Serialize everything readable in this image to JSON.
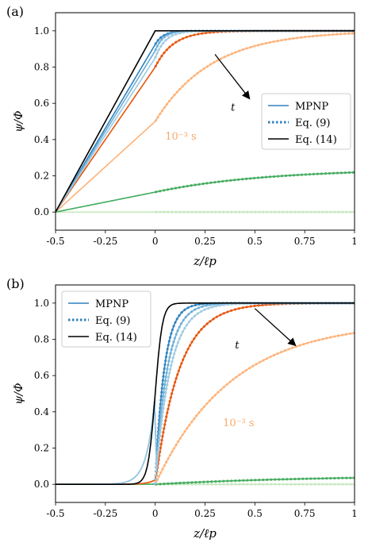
{
  "chart_data": [
    {
      "type": "line",
      "panel_label": "(a)",
      "xlabel": "z/ℓp",
      "ylabel": "ψ/Φ",
      "xlim": [
        -0.5,
        1.0
      ],
      "ylim": [
        -0.1,
        1.1
      ],
      "xticks": [
        "-0.5",
        "-0.25",
        "0",
        "0.25",
        "0.5",
        "0.75",
        "1"
      ],
      "yticks": [
        "0.0",
        "0.2",
        "0.4",
        "0.6",
        "0.8",
        "1.0"
      ],
      "legend_position": "right",
      "legend": [
        "MPNP",
        "Eq. (9)",
        "Eq. (14)"
      ],
      "annotations": {
        "time_label": "10⁻³ s",
        "arrow_label": "t"
      },
      "eq14": {
        "x": [
          -0.5,
          0.0,
          1.0
        ],
        "y": [
          0.0,
          1.0,
          1.0
        ]
      },
      "curves": [
        {
          "color": "#c7e9c0",
          "slope": 0.0,
          "tau": 1.0,
          "base": 0.0
        },
        {
          "color": "#41ab5d",
          "slope": 0.22,
          "tau": 0.55,
          "base": 0.11
        },
        {
          "color": "#fdb27a",
          "slope": 1.0,
          "tau": 0.28,
          "base": 0.5
        },
        {
          "color": "#e6550d",
          "slope": 1.6,
          "tau": 0.09,
          "base": 0.8
        },
        {
          "color": "#3182bd",
          "slope": 1.85,
          "tau": 0.04,
          "base": 0.93
        },
        {
          "color": "#6baed6",
          "slope": 1.78,
          "tau": 0.04,
          "base": 0.91
        },
        {
          "color": "#9ecae1",
          "slope": 1.7,
          "tau": 0.05,
          "base": 0.88
        }
      ]
    },
    {
      "type": "line",
      "panel_label": "(b)",
      "xlabel": "z/ℓp",
      "ylabel": "ψ/Φ",
      "xlim": [
        -0.5,
        1.0
      ],
      "ylim": [
        -0.1,
        1.1
      ],
      "xticks": [
        "-0.5",
        "-0.25",
        "0",
        "0.25",
        "0.5",
        "0.75",
        "1"
      ],
      "yticks": [
        "0.0",
        "0.2",
        "0.4",
        "0.6",
        "0.8",
        "1.0"
      ],
      "legend_position": "top-left",
      "legend": [
        "MPNP",
        "Eq. (9)",
        "Eq. (14)"
      ],
      "annotations": {
        "time_label": "10⁻³ s",
        "arrow_label": "t"
      },
      "curves": [
        {
          "color": "#c7e9c0",
          "A": 0.0,
          "tau": 1.0
        },
        {
          "color": "#41ab5d",
          "A": 0.05,
          "tau": 0.8
        },
        {
          "color": "#fdb27a",
          "A": 0.9,
          "tau": 0.38
        },
        {
          "color": "#e6550d",
          "A": 1.0,
          "tau": 0.12
        },
        {
          "color": "#3182bd",
          "A": 1.0,
          "tau": 0.045
        },
        {
          "color": "#6baed6",
          "A": 1.0,
          "tau": 0.06
        },
        {
          "color": "#9ecae1",
          "A": 1.0,
          "tau": 0.075
        }
      ]
    }
  ]
}
